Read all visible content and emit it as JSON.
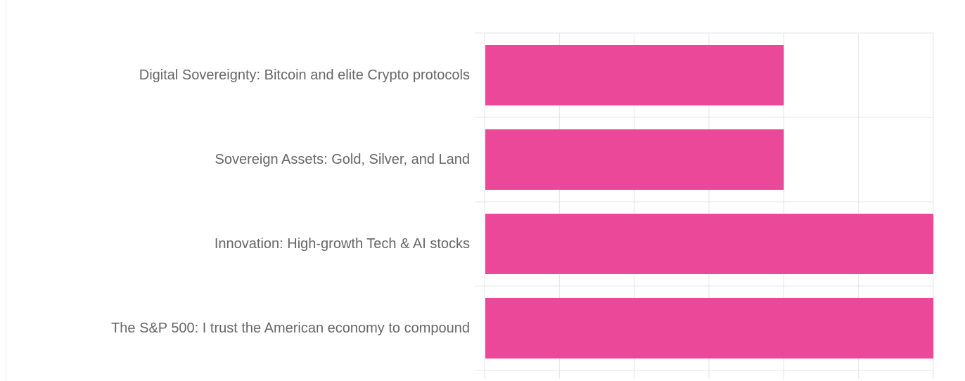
{
  "chart_data": {
    "type": "bar",
    "orientation": "horizontal",
    "categories": [
      "Digital Sovereignty: Bitcoin and elite Crypto protocols",
      "Sovereign Assets: Gold, Silver, and Land",
      "Innovation: High-growth Tech & AI stocks",
      "The S&P 500: I trust the American economy to compound"
    ],
    "values": [
      2,
      2,
      3,
      3
    ],
    "xlim": [
      0,
      3
    ],
    "grid": true,
    "colors": {
      "bar": "#ec4899",
      "grid": "#e5e5e5",
      "label": "#666666"
    }
  }
}
